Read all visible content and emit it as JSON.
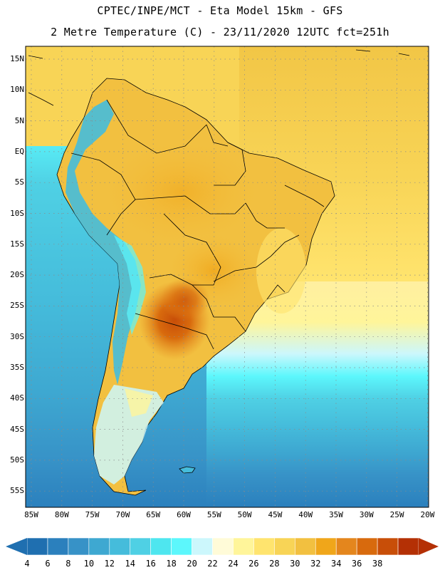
{
  "header": {
    "line1": "CPTEC/INPE/MCT -  Eta Model 15km - GFS",
    "line2": "2 Metre Temperature (C) - 23/11/2020 12UTC fct=251h"
  },
  "map": {
    "lat_labels": [
      "15N",
      "10N",
      "5N",
      "EQ",
      "5S",
      "10S",
      "15S",
      "20S",
      "25S",
      "30S",
      "35S",
      "40S",
      "45S",
      "50S",
      "55S"
    ],
    "lon_labels": [
      "85W",
      "80W",
      "75W",
      "70W",
      "65W",
      "60W",
      "55W",
      "50W",
      "45W",
      "40W",
      "35W",
      "30W",
      "25W",
      "20W"
    ],
    "region": "South America"
  },
  "colorbar": {
    "labels": [
      "4",
      "6",
      "8",
      "10",
      "12",
      "14",
      "16",
      "18",
      "20",
      "22",
      "24",
      "26",
      "28",
      "30",
      "32",
      "34",
      "36",
      "38"
    ],
    "colors": [
      "#1f6fb0",
      "#2b80bd",
      "#3792c7",
      "#3ea8d1",
      "#45bcdb",
      "#4fd0e4",
      "#4ee6ef",
      "#5cf7fc",
      "#ccf7fc",
      "#fffbd8",
      "#fff59a",
      "#ffe46e",
      "#f8d456",
      "#f2c040",
      "#f0a61a",
      "#e4861d",
      "#d86a0d",
      "#c84e08",
      "#b43005"
    ]
  }
}
